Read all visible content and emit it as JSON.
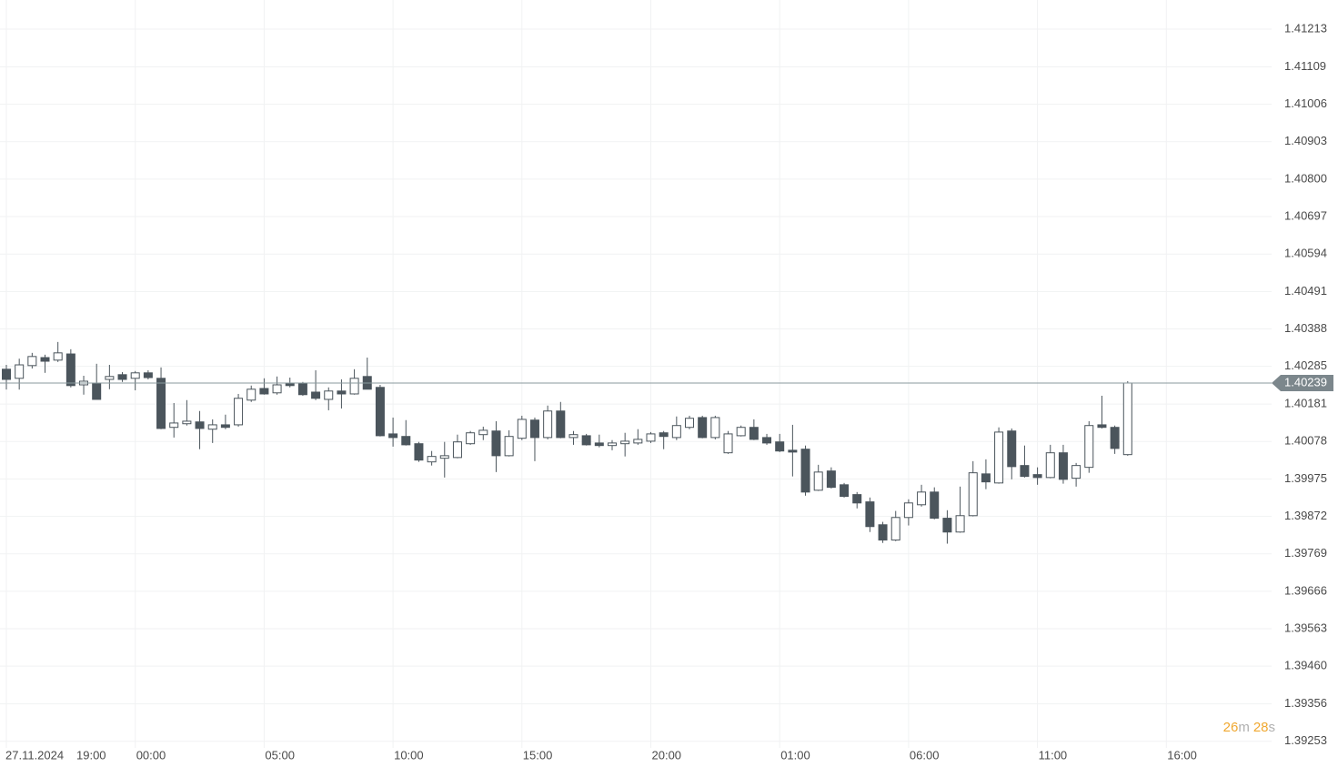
{
  "chart_data": {
    "type": "candlestick",
    "date": "27.11.2024",
    "xticks": [
      {
        "value": 0,
        "label": "19:00"
      },
      {
        "value": 10,
        "label": "00:00"
      },
      {
        "value": 20,
        "label": "05:00"
      },
      {
        "value": 30,
        "label": "10:00"
      },
      {
        "value": 40,
        "label": "15:00"
      },
      {
        "value": 50,
        "label": "20:00"
      },
      {
        "value": 60,
        "label": "01:00"
      },
      {
        "value": 70,
        "label": "06:00"
      },
      {
        "value": 80,
        "label": "11:00"
      },
      {
        "value": 90,
        "label": "16:00"
      }
    ],
    "ylim": [
      1.39235,
      1.41293
    ],
    "yticks": [
      1.41213,
      1.41109,
      1.41006,
      1.40903,
      {
        "value": 1.408,
        "label": "1.40800"
      },
      1.40697,
      1.40594,
      1.40491,
      1.40388,
      1.40285,
      1.40181,
      1.40078,
      1.39975,
      1.39872,
      1.39769,
      1.39666,
      1.39563,
      {
        "value": 1.3946,
        "label": "1.39460"
      },
      1.39356,
      1.39253
    ],
    "grid": true,
    "up_color": "#ffffff",
    "down_color": "#4b555c",
    "outline_color": "#4b555c",
    "last_price": 1.40239,
    "countdown": {
      "minutes": "26",
      "minutes_unit": "m",
      "seconds": "28",
      "seconds_unit": "s"
    },
    "open": [
      1.40277,
      1.40252,
      1.40287,
      1.40309,
      1.40302,
      1.40319,
      1.40234,
      1.40239,
      1.40249,
      1.40262,
      1.40252,
      1.40267,
      1.40252,
      1.40117,
      1.40127,
      1.40132,
      1.40112,
      1.40124,
      1.40124,
      1.40192,
      1.40224,
      1.40212,
      1.40239,
      1.40237,
      1.40214,
      1.40194,
      1.40217,
      1.40209,
      1.40257,
      1.40227,
      1.40099,
      1.40092,
      1.40072,
      1.40022,
      1.40032,
      1.40034,
      1.40072,
      1.40097,
      1.40107,
      1.40039,
      1.40087,
      1.40137,
      1.40089,
      1.40162,
      1.40089,
      1.40094,
      1.40074,
      1.40067,
      1.40072,
      1.40074,
      1.40079,
      1.40102,
      1.40089,
      1.40117,
      1.40144,
      1.40089,
      1.40047,
      1.40094,
      1.40117,
      1.40089,
      1.40077,
      1.40054,
      1.40057,
      1.39944,
      1.39997,
      1.39959,
      1.39932,
      1.39912,
      1.39849,
      1.39807,
      1.39869,
      1.39904,
      1.39939,
      1.39867,
      1.39829,
      1.39874,
      1.39989,
      1.39964,
      1.40107,
      1.40012,
      1.39987,
      1.39979,
      1.40047,
      1.39977,
      1.40007,
      1.40124,
      1.40117,
      1.40042
    ],
    "high": [
      1.40289,
      1.40306,
      1.40322,
      1.40317,
      1.40352,
      1.40332,
      1.40259,
      1.40292,
      1.40289,
      1.40269,
      1.40272,
      1.40274,
      1.40282,
      1.40184,
      1.40192,
      1.40162,
      1.40139,
      1.40152,
      1.40209,
      1.40232,
      1.40252,
      1.40257,
      1.40254,
      1.40242,
      1.40274,
      1.40227,
      1.40249,
      1.40277,
      1.40309,
      1.40234,
      1.40144,
      1.40137,
      1.40077,
      1.40052,
      1.40077,
      1.40097,
      1.40107,
      1.40119,
      1.40134,
      1.40109,
      1.40149,
      1.40144,
      1.40177,
      1.40187,
      1.40107,
      1.40099,
      1.40097,
      1.40082,
      1.40102,
      1.40112,
      1.40104,
      1.40107,
      1.40147,
      1.40149,
      1.40149,
      1.40149,
      1.40107,
      1.40122,
      1.40139,
      1.40099,
      1.40099,
      1.40124,
      1.40067,
      1.40014,
      1.40007,
      1.39964,
      1.39939,
      1.39924,
      1.39857,
      1.39887,
      1.39919,
      1.39959,
      1.39952,
      1.39889,
      1.39954,
      1.40024,
      1.40029,
      1.40117,
      1.40114,
      1.40067,
      1.40007,
      1.40069,
      1.40069,
      1.40019,
      1.40134,
      1.40204,
      1.40122,
      1.40244
    ],
    "low": [
      1.40221,
      1.40221,
      1.40279,
      1.40267,
      1.40297,
      1.40227,
      1.40207,
      1.40194,
      1.40222,
      1.40242,
      1.40219,
      1.40249,
      1.40112,
      1.40089,
      1.40122,
      1.40057,
      1.40074,
      1.40112,
      1.40119,
      1.40187,
      1.40207,
      1.40207,
      1.40227,
      1.40204,
      1.40192,
      1.40164,
      1.40169,
      1.40207,
      1.40222,
      1.40092,
      1.40064,
      1.40067,
      1.40022,
      1.40012,
      1.39979,
      1.40032,
      1.40069,
      1.40082,
      1.39994,
      1.40037,
      1.40082,
      1.40024,
      1.40084,
      1.40087,
      1.40069,
      1.40067,
      1.40062,
      1.40054,
      1.40037,
      1.40069,
      1.40074,
      1.40057,
      1.40082,
      1.40112,
      1.40087,
      1.40084,
      1.40044,
      1.40092,
      1.40082,
      1.40069,
      1.40049,
      1.39982,
      1.39929,
      1.39942,
      1.39949,
      1.39924,
      1.39894,
      1.39829,
      1.39799,
      1.39804,
      1.39847,
      1.39899,
      1.39864,
      1.39797,
      1.39827,
      1.39872,
      1.39947,
      1.39962,
      1.39974,
      1.39979,
      1.39959,
      1.39977,
      1.39962,
      1.39954,
      1.39992,
      1.40114,
      1.40044,
      1.40039
    ],
    "close": [
      1.40249,
      1.40289,
      1.40312,
      1.40299,
      1.40322,
      1.40232,
      1.40244,
      1.40194,
      1.40257,
      1.40249,
      1.40267,
      1.40254,
      1.40114,
      1.40129,
      1.40134,
      1.40114,
      1.40124,
      1.40117,
      1.40197,
      1.40222,
      1.40209,
      1.40234,
      1.40232,
      1.40207,
      1.40197,
      1.40217,
      1.40209,
      1.40252,
      1.40222,
      1.40094,
      1.40089,
      1.40069,
      1.40027,
      1.40037,
      1.40039,
      1.40077,
      1.40102,
      1.40109,
      1.40039,
      1.40092,
      1.40139,
      1.40089,
      1.40162,
      1.40089,
      1.40097,
      1.40069,
      1.40067,
      1.40074,
      1.40079,
      1.40084,
      1.40099,
      1.40092,
      1.40122,
      1.40142,
      1.40089,
      1.40144,
      1.40099,
      1.40117,
      1.40084,
      1.40074,
      1.40052,
      1.40049,
      1.39939,
      1.39994,
      1.39952,
      1.39927,
      1.39909,
      1.39844,
      1.39807,
      1.39869,
      1.39909,
      1.39939,
      1.39867,
      1.39829,
      1.39874,
      1.39992,
      1.39967,
      1.40104,
      1.40009,
      1.39982,
      1.39979,
      1.40047,
      1.39974,
      1.40012,
      1.40122,
      1.40117,
      1.40059,
      1.40239
    ]
  }
}
